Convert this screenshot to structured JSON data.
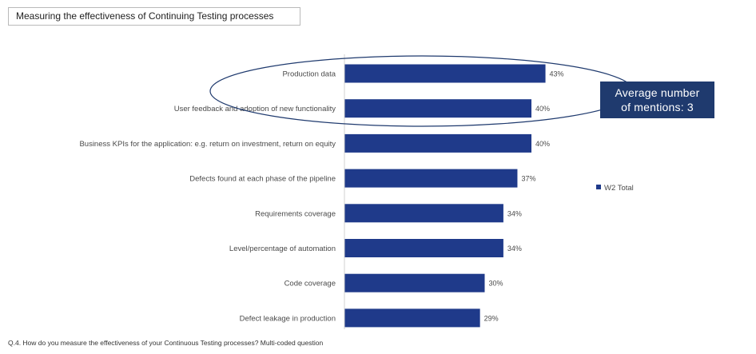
{
  "header": {
    "title": "Measuring the effectiveness of Continuing Testing processes"
  },
  "callout": {
    "line1": "Average number",
    "line2": "of mentions: 3"
  },
  "footnote": "Q.4. How do you measure the effectiveness of your Continuous Testing processes?  Multi-coded question",
  "colors": {
    "bar": "#1f3a8a",
    "callout_bg": "#1f3a6e",
    "ellipse_stroke": "#1f3a6e",
    "axis": "#d0d0d0"
  },
  "chart_data": {
    "type": "bar",
    "orientation": "horizontal",
    "categories": [
      "Production data",
      "User feedback and adoption of new functionality",
      "Business KPIs for the application: e.g. return on investment, return on equity",
      "Defects found at each phase of the pipeline",
      "Requirements coverage",
      "Level/percentage of automation",
      "Code coverage",
      "Defect leakage in production"
    ],
    "series": [
      {
        "name": "W2 Total",
        "values": [
          43,
          40,
          40,
          37,
          34,
          34,
          30,
          29
        ]
      }
    ],
    "value_labels": [
      "43%",
      "40%",
      "40%",
      "37%",
      "34%",
      "34%",
      "30%",
      "29%"
    ],
    "unit": "%",
    "xlim": [
      0,
      60
    ],
    "grid": false,
    "legend_position": "right",
    "highlight": {
      "shape": "ellipse",
      "categories": [
        "Production data",
        "User feedback and adoption of new functionality"
      ]
    }
  }
}
